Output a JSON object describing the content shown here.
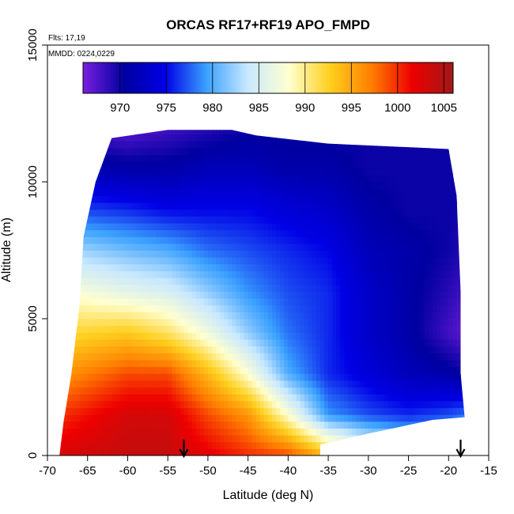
{
  "chart_data": {
    "type": "heatmap",
    "title": "ORCAS RF17+RF19 APO_FMPD",
    "xlabel": "Latitude (deg N)",
    "ylabel": "Altitude (m)",
    "annotations": [
      "Flts: 17,19",
      "MMDD: 0224,0229"
    ],
    "xlim": [
      -70,
      -15
    ],
    "ylim": [
      0,
      15000
    ],
    "x_ticks": [
      -70,
      -65,
      -60,
      -55,
      -50,
      -45,
      -40,
      -35,
      -30,
      -25,
      -20,
      -15
    ],
    "y_ticks": [
      0,
      5000,
      10000,
      15000
    ],
    "colorbar": {
      "min": 966,
      "max": 1006,
      "ticks": [
        970,
        975,
        980,
        985,
        990,
        995,
        1000,
        1005
      ],
      "colors": [
        "#7a1fe0",
        "#0000a0",
        "#0000e6",
        "#3aa0ff",
        "#c8e8ff",
        "#ffffd0",
        "#ffd020",
        "#ff8000",
        "#ee0000",
        "#a01818"
      ]
    },
    "field_profiles": [
      {
        "lat": -68,
        "points": [
          [
            0,
            1003
          ],
          [
            1500,
            1000
          ],
          [
            3000,
            996
          ],
          [
            4500,
            992
          ],
          [
            6000,
            988
          ],
          [
            7500,
            983
          ],
          [
            9000,
            977
          ],
          [
            10500,
            972
          ],
          [
            12000,
            968
          ]
        ]
      },
      {
        "lat": -60,
        "points": [
          [
            0,
            1004
          ],
          [
            1500,
            1003
          ],
          [
            3000,
            999
          ],
          [
            4500,
            993
          ],
          [
            6000,
            986
          ],
          [
            7500,
            981
          ],
          [
            9000,
            976
          ],
          [
            10500,
            971
          ],
          [
            12000,
            967
          ]
        ]
      },
      {
        "lat": -55,
        "points": [
          [
            0,
            1004
          ],
          [
            1500,
            1003
          ],
          [
            3000,
            999
          ],
          [
            4500,
            991
          ],
          [
            6000,
            985
          ],
          [
            7500,
            980
          ],
          [
            9000,
            975
          ],
          [
            10500,
            971
          ],
          [
            12000,
            968
          ]
        ]
      },
      {
        "lat": -50,
        "points": [
          [
            0,
            1002
          ],
          [
            1500,
            999
          ],
          [
            3000,
            994
          ],
          [
            4500,
            987
          ],
          [
            6000,
            982
          ],
          [
            7500,
            978
          ],
          [
            9000,
            975
          ],
          [
            10500,
            972
          ],
          [
            12000,
            969
          ]
        ]
      },
      {
        "lat": -45,
        "points": [
          [
            0,
            1000
          ],
          [
            1500,
            996
          ],
          [
            3000,
            988
          ],
          [
            4500,
            982
          ],
          [
            6000,
            979
          ],
          [
            7500,
            977
          ],
          [
            9000,
            975
          ],
          [
            10500,
            972
          ],
          [
            12000,
            970
          ]
        ]
      },
      {
        "lat": -40,
        "points": [
          [
            0,
            999
          ],
          [
            1500,
            988
          ],
          [
            3000,
            980
          ],
          [
            4500,
            978
          ],
          [
            6000,
            977
          ],
          [
            7500,
            976
          ],
          [
            9000,
            974
          ],
          [
            10500,
            971
          ],
          [
            12000,
            970
          ]
        ]
      },
      {
        "lat": -35,
        "points": [
          [
            0,
            994
          ],
          [
            1500,
            979
          ],
          [
            3000,
            976
          ],
          [
            4500,
            976
          ],
          [
            6000,
            976
          ],
          [
            7500,
            975
          ],
          [
            9000,
            973
          ],
          [
            10500,
            971
          ],
          [
            12000,
            970
          ]
        ]
      },
      {
        "lat": -30,
        "points": [
          [
            0,
            988
          ],
          [
            1500,
            977
          ],
          [
            3000,
            974
          ],
          [
            4500,
            973
          ],
          [
            6000,
            973
          ],
          [
            7500,
            972
          ],
          [
            9000,
            971
          ],
          [
            10500,
            970
          ],
          [
            12000,
            970
          ]
        ]
      },
      {
        "lat": -25,
        "points": [
          [
            0,
            985
          ],
          [
            1500,
            976
          ],
          [
            3000,
            972
          ],
          [
            4500,
            971
          ],
          [
            6000,
            971
          ],
          [
            7500,
            971
          ],
          [
            9000,
            970
          ],
          [
            10500,
            970
          ],
          [
            12000,
            970
          ]
        ]
      },
      {
        "lat": -20,
        "points": [
          [
            0,
            984
          ],
          [
            1500,
            977
          ],
          [
            3000,
            971
          ],
          [
            4500,
            968
          ],
          [
            6000,
            969
          ],
          [
            7500,
            970
          ],
          [
            9000,
            970
          ],
          [
            10500,
            970
          ],
          [
            12000,
            970
          ]
        ]
      },
      {
        "lat": -18,
        "points": [
          [
            0,
            984
          ],
          [
            1500,
            978
          ],
          [
            3000,
            970
          ],
          [
            4500,
            967
          ],
          [
            6000,
            968
          ],
          [
            7500,
            969
          ],
          [
            9000,
            970
          ],
          [
            10500,
            970
          ],
          [
            12000,
            970
          ]
        ]
      }
    ],
    "region_outline": [
      [
        -68.5,
        0
      ],
      [
        -68,
        1200
      ],
      [
        -67,
        3000
      ],
      [
        -66,
        5500
      ],
      [
        -65.5,
        8000
      ],
      [
        -64,
        10000
      ],
      [
        -62,
        11600
      ],
      [
        -55,
        11900
      ],
      [
        -47,
        11900
      ],
      [
        -44,
        11700
      ],
      [
        -35,
        11400
      ],
      [
        -20,
        11200
      ],
      [
        -19,
        9500
      ],
      [
        -18.5,
        6000
      ],
      [
        -18.5,
        3000
      ],
      [
        -18,
        1400
      ],
      [
        -22,
        1300
      ],
      [
        -30,
        800
      ],
      [
        -36,
        400
      ],
      [
        -36,
        0
      ]
    ],
    "markers": [
      {
        "lat": -53,
        "label": "arrow"
      },
      {
        "lat": -18.5,
        "label": "arrow"
      }
    ],
    "grid": false
  }
}
